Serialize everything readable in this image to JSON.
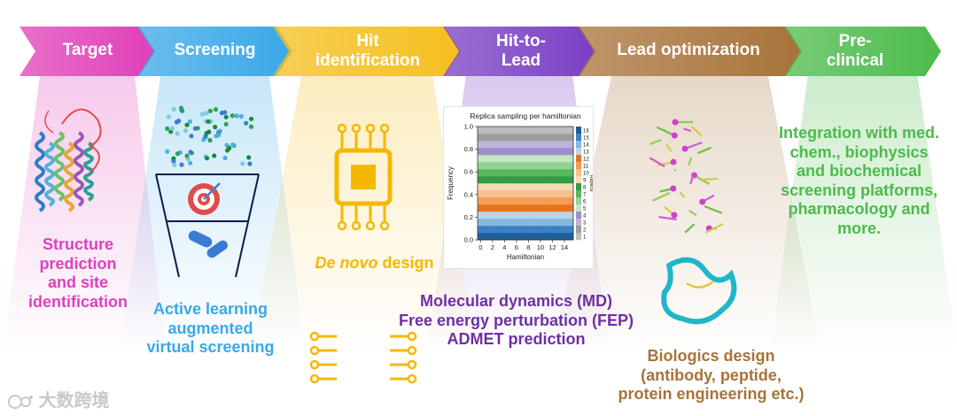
{
  "stages": [
    {
      "lines": [
        "Target"
      ],
      "color": "#e040b8"
    },
    {
      "lines": [
        "Screening"
      ],
      "color": "#3aa8e8"
    },
    {
      "lines": [
        "Hit",
        "identification"
      ],
      "color": "#f5bf1e"
    },
    {
      "lines": [
        "Hit-to-",
        "Lead"
      ],
      "color": "#7a3fc4"
    },
    {
      "lines": [
        "Lead optimization"
      ],
      "color": "#a8733a"
    },
    {
      "lines": [
        "Pre-",
        "clinical"
      ],
      "color": "#4cbb4c"
    }
  ],
  "captions": {
    "target": {
      "lines": [
        "Structure",
        "prediction",
        "and site",
        "identification"
      ],
      "color": "#e040c0"
    },
    "screening": {
      "lines": [
        "Active learning",
        "augmented",
        "virtual screening"
      ],
      "color": "#3aa8e8"
    },
    "hit": {
      "prefix": "De novo",
      "suffix": " design",
      "color": "#f5b800"
    },
    "hit_to_lead": {
      "lines": [
        "Molecular dynamics (MD)",
        "Free energy perturbation (FEP)",
        "ADMET prediction"
      ],
      "color": "#7030a0"
    },
    "lead_opt": {
      "lines": [
        "Biologics design",
        "(antibody, peptide,",
        "protein engineering etc.)"
      ],
      "color": "#a8733a"
    },
    "preclinical": {
      "lines": [
        "Integration with med.",
        "chem., biophysics",
        "and biochemical",
        "screening platforms,",
        "pharmacology and",
        "more."
      ],
      "color": "#4cbb4c"
    }
  },
  "chart_data": {
    "type": "area",
    "title": "Replica sampling per hamiltonian",
    "xlabel": "Hamiltonian",
    "ylabel": "Frequency",
    "xlim": [
      0,
      16
    ],
    "ylim": [
      0,
      1.0
    ],
    "x_ticks": [
      0,
      2,
      4,
      6,
      8,
      10,
      12,
      14
    ],
    "y_ticks": [
      0.0,
      0.2,
      0.4,
      0.6,
      0.8,
      1.0
    ],
    "legend_title": "Replica",
    "legend_labels": [
      "16",
      "15",
      "14",
      "13",
      "12",
      "11",
      "10",
      "9",
      "8",
      "7",
      "6",
      "5",
      "4",
      "3",
      "2",
      "1"
    ],
    "n_hamiltonians": 17,
    "n_replicas": 16,
    "legend_placement": "right"
  },
  "watermark": {
    "text": "大数跨境"
  }
}
